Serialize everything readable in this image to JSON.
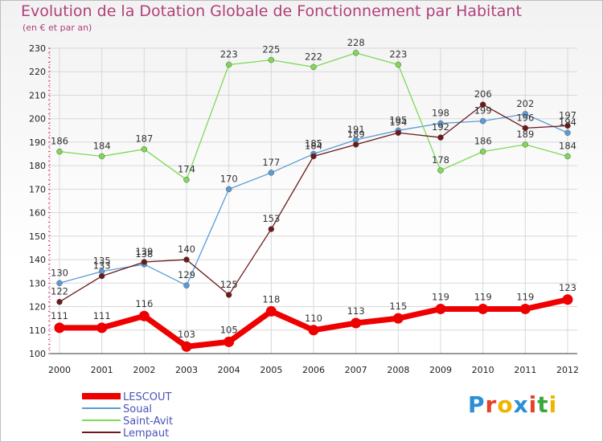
{
  "header": {
    "title": "Evolution de la Dotation Globale de Fonctionnement par Habitant",
    "subtitle": "(en € et par an)"
  },
  "logo": {
    "text": "Proxiti",
    "colors": [
      "#2a8fd6",
      "#e8402a",
      "#f0b400",
      "#2a8fd6",
      "#e8402a",
      "#3aa83a",
      "#f0b400"
    ]
  },
  "chart_data": {
    "type": "line",
    "x": [
      "2000",
      "2001",
      "2002",
      "2003",
      "2004",
      "2005",
      "2006",
      "2007",
      "2008",
      "2009",
      "2010",
      "2011",
      "2012"
    ],
    "ylim": [
      100,
      230
    ],
    "yticks": [
      100,
      110,
      120,
      130,
      140,
      150,
      160,
      170,
      180,
      190,
      200,
      210,
      220,
      230
    ],
    "grid": true,
    "legend_position": "bottom-left",
    "series": [
      {
        "name": "LESCOUT",
        "color": "#ee0000",
        "values": [
          111,
          111,
          116,
          103,
          105,
          118,
          110,
          113,
          115,
          119,
          119,
          119,
          123
        ]
      },
      {
        "name": "Soual",
        "color": "#5b9bd5",
        "values": [
          130,
          135,
          138,
          129,
          170,
          177,
          185,
          191,
          195,
          198,
          199,
          202,
          194
        ]
      },
      {
        "name": "Saint-Avit",
        "color": "#7ed957",
        "values": [
          186,
          184,
          187,
          174,
          223,
          225,
          222,
          228,
          223,
          178,
          186,
          189,
          184
        ]
      },
      {
        "name": "Lempaut",
        "color": "#6b1a1a",
        "values": [
          122,
          133,
          139,
          140,
          125,
          153,
          184,
          189,
          194,
          192,
          206,
          196,
          197
        ]
      }
    ]
  }
}
